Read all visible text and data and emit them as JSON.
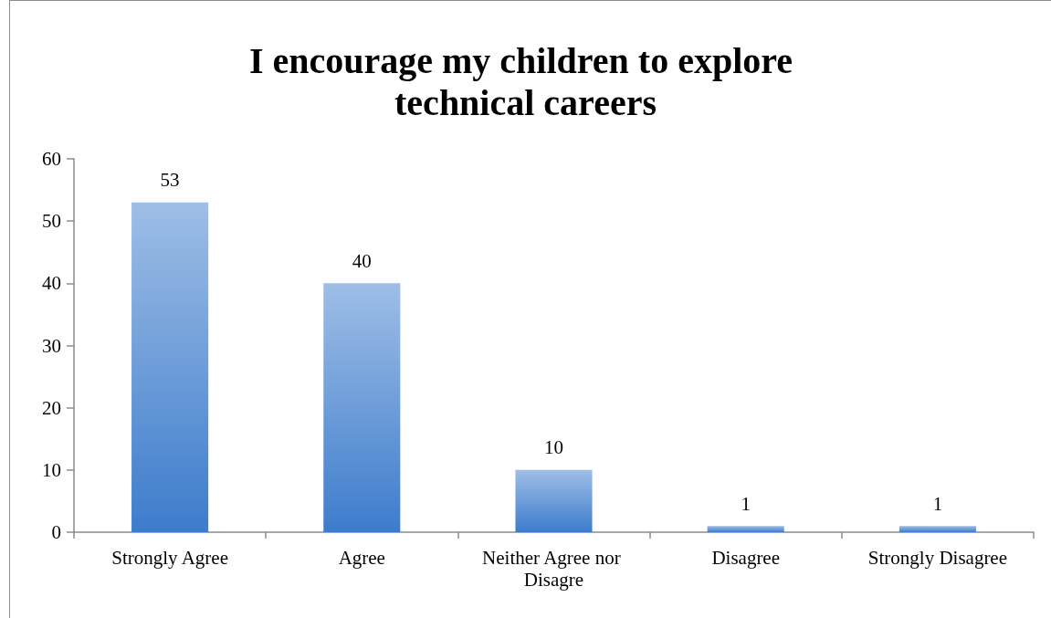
{
  "chart_data": {
    "type": "bar",
    "title": "I encourage my children to explore technical careers",
    "categories": [
      "Strongly Agree",
      "Agree",
      "Neither Agree nor Disagre",
      "Disagree",
      "Strongly Disagree"
    ],
    "values": [
      53,
      40,
      10,
      1,
      1
    ],
    "color": "#3d7ccc",
    "ylim": [
      0,
      60
    ],
    "yticks": [
      0,
      10,
      20,
      30,
      40,
      50,
      60
    ],
    "grid": false,
    "data_labels": true
  }
}
